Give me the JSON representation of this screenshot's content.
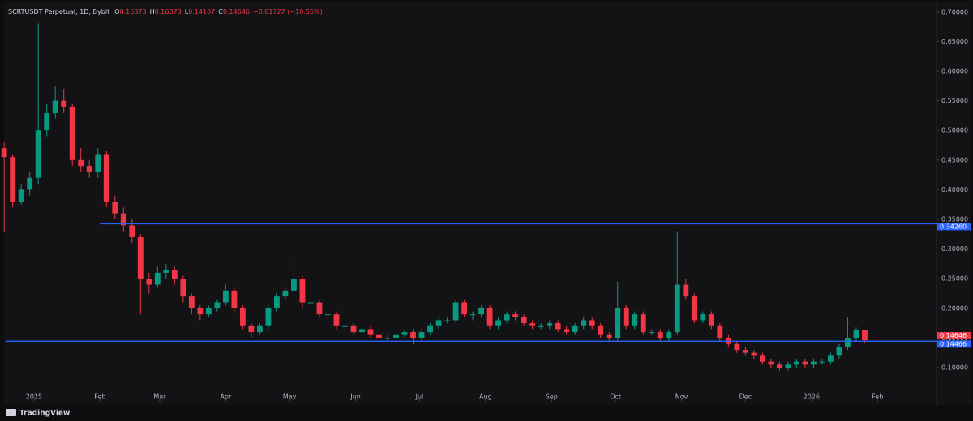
{
  "header": {
    "symbol": "SCRTUSDT Perpetual, 1D, Bybit",
    "ohlc": [
      {
        "key": "O",
        "value": "0.16373"
      },
      {
        "key": "H",
        "value": "0.16373"
      },
      {
        "key": "L",
        "value": "0.14107"
      },
      {
        "key": "C",
        "value": "0.14646"
      }
    ],
    "change": "−0.01727 (−10.55%)"
  },
  "footer": {
    "brand": "TradingView"
  },
  "chart_data": {
    "type": "candlestick",
    "up_color": "#089981",
    "down_color": "#f23645",
    "x": [
      -14,
      -10,
      -6,
      -2,
      2,
      6,
      10,
      14,
      18,
      22,
      26,
      30,
      34,
      38,
      42,
      46,
      50,
      54,
      58,
      62,
      66,
      70,
      74,
      78,
      82,
      86,
      90,
      94,
      98,
      102,
      106,
      110,
      114,
      118,
      122,
      126,
      130,
      134,
      138,
      142,
      146,
      150,
      154,
      158,
      162,
      166,
      170,
      174,
      178,
      182,
      186,
      190,
      194,
      198,
      202,
      206,
      210,
      214,
      218,
      222,
      226,
      230,
      234,
      238,
      242,
      246,
      250,
      254,
      258,
      262,
      266,
      270,
      274,
      278,
      282,
      286,
      290,
      294,
      298,
      302,
      306,
      310,
      314,
      318,
      322,
      326,
      330,
      334,
      338,
      342,
      346,
      350,
      354,
      358,
      362,
      366,
      370,
      374,
      378,
      382,
      386,
      390
    ],
    "open": [
      0.47,
      0.455,
      0.38,
      0.4,
      0.42,
      0.5,
      0.53,
      0.55,
      0.54,
      0.45,
      0.44,
      0.43,
      0.46,
      0.38,
      0.36,
      0.34,
      0.32,
      0.25,
      0.24,
      0.26,
      0.265,
      0.25,
      0.22,
      0.2,
      0.19,
      0.2,
      0.21,
      0.23,
      0.2,
      0.17,
      0.16,
      0.17,
      0.2,
      0.22,
      0.23,
      0.25,
      0.21,
      0.21,
      0.19,
      0.19,
      0.17,
      0.17,
      0.16,
      0.165,
      0.155,
      0.15,
      0.15,
      0.155,
      0.16,
      0.15,
      0.16,
      0.17,
      0.18,
      0.18,
      0.21,
      0.19,
      0.19,
      0.2,
      0.17,
      0.18,
      0.19,
      0.185,
      0.175,
      0.17,
      0.17,
      0.175,
      0.165,
      0.16,
      0.17,
      0.18,
      0.17,
      0.155,
      0.15,
      0.2,
      0.17,
      0.19,
      0.16,
      0.16,
      0.15,
      0.16,
      0.24,
      0.22,
      0.18,
      0.19,
      0.17,
      0.15,
      0.14,
      0.13,
      0.125,
      0.12,
      0.11,
      0.105,
      0.1,
      0.105,
      0.11,
      0.105,
      0.11,
      0.11,
      0.12,
      0.135,
      0.15,
      0.16373
    ],
    "high": [
      0.48,
      0.46,
      0.41,
      0.43,
      0.68,
      0.545,
      0.575,
      0.57,
      0.545,
      0.47,
      0.45,
      0.47,
      0.465,
      0.39,
      0.37,
      0.35,
      0.325,
      0.26,
      0.27,
      0.275,
      0.27,
      0.255,
      0.225,
      0.205,
      0.205,
      0.215,
      0.24,
      0.235,
      0.205,
      0.175,
      0.175,
      0.205,
      0.225,
      0.235,
      0.295,
      0.255,
      0.22,
      0.215,
      0.195,
      0.195,
      0.175,
      0.175,
      0.17,
      0.17,
      0.16,
      0.155,
      0.16,
      0.165,
      0.165,
      0.165,
      0.175,
      0.185,
      0.185,
      0.215,
      0.215,
      0.195,
      0.205,
      0.205,
      0.185,
      0.195,
      0.195,
      0.19,
      0.18,
      0.175,
      0.18,
      0.18,
      0.17,
      0.175,
      0.185,
      0.185,
      0.175,
      0.16,
      0.245,
      0.205,
      0.195,
      0.195,
      0.165,
      0.165,
      0.165,
      0.33,
      0.25,
      0.225,
      0.195,
      0.195,
      0.175,
      0.155,
      0.145,
      0.135,
      0.13,
      0.125,
      0.115,
      0.11,
      0.11,
      0.115,
      0.115,
      0.115,
      0.115,
      0.125,
      0.14,
      0.185,
      0.168,
      0.16373
    ],
    "low": [
      0.33,
      0.37,
      0.375,
      0.39,
      0.41,
      0.49,
      0.52,
      0.53,
      0.44,
      0.43,
      0.42,
      0.42,
      0.37,
      0.35,
      0.33,
      0.31,
      0.19,
      0.225,
      0.235,
      0.25,
      0.24,
      0.21,
      0.19,
      0.18,
      0.185,
      0.195,
      0.205,
      0.195,
      0.165,
      0.15,
      0.155,
      0.165,
      0.195,
      0.215,
      0.225,
      0.2,
      0.2,
      0.185,
      0.18,
      0.165,
      0.16,
      0.155,
      0.155,
      0.15,
      0.145,
      0.145,
      0.145,
      0.15,
      0.14,
      0.145,
      0.155,
      0.165,
      0.175,
      0.175,
      0.185,
      0.18,
      0.185,
      0.165,
      0.165,
      0.175,
      0.18,
      0.17,
      0.165,
      0.165,
      0.165,
      0.16,
      0.155,
      0.155,
      0.165,
      0.165,
      0.15,
      0.145,
      0.145,
      0.165,
      0.165,
      0.155,
      0.155,
      0.145,
      0.145,
      0.155,
      0.215,
      0.175,
      0.175,
      0.165,
      0.145,
      0.135,
      0.125,
      0.12,
      0.115,
      0.105,
      0.1,
      0.095,
      0.095,
      0.1,
      0.1,
      0.1,
      0.105,
      0.105,
      0.115,
      0.13,
      0.145,
      0.14107
    ],
    "close": [
      0.455,
      0.38,
      0.4,
      0.42,
      0.5,
      0.53,
      0.55,
      0.54,
      0.45,
      0.44,
      0.43,
      0.46,
      0.38,
      0.36,
      0.34,
      0.32,
      0.25,
      0.24,
      0.26,
      0.265,
      0.25,
      0.22,
      0.2,
      0.19,
      0.2,
      0.21,
      0.23,
      0.2,
      0.17,
      0.16,
      0.17,
      0.2,
      0.22,
      0.23,
      0.25,
      0.21,
      0.21,
      0.19,
      0.19,
      0.17,
      0.17,
      0.16,
      0.165,
      0.155,
      0.15,
      0.15,
      0.155,
      0.16,
      0.15,
      0.16,
      0.17,
      0.18,
      0.18,
      0.21,
      0.19,
      0.19,
      0.2,
      0.17,
      0.18,
      0.19,
      0.185,
      0.175,
      0.17,
      0.17,
      0.175,
      0.165,
      0.16,
      0.17,
      0.18,
      0.17,
      0.155,
      0.15,
      0.2,
      0.17,
      0.19,
      0.16,
      0.16,
      0.15,
      0.16,
      0.24,
      0.22,
      0.18,
      0.19,
      0.17,
      0.15,
      0.14,
      0.13,
      0.125,
      0.12,
      0.11,
      0.105,
      0.1,
      0.105,
      0.11,
      0.105,
      0.11,
      0.11,
      0.12,
      0.135,
      0.15,
      0.16373,
      0.14646
    ],
    "last_label": "0.14646",
    "levels": [
      {
        "value": 0.3426,
        "label": "0.34260",
        "color": "#2962ff",
        "x_start": 31
      },
      {
        "value": 0.14466,
        "label": "0.14466",
        "color": "#2962ff"
      }
    ],
    "xlim": [
      -13.3,
      423.7
    ],
    "xticks": [
      {
        "value": 0,
        "label": "2025"
      },
      {
        "value": 31,
        "label": "Feb"
      },
      {
        "value": 59,
        "label": "Mar"
      },
      {
        "value": 90,
        "label": "Apr"
      },
      {
        "value": 120,
        "label": "May"
      },
      {
        "value": 151,
        "label": "Jun"
      },
      {
        "value": 181,
        "label": "Jul"
      },
      {
        "value": 212,
        "label": "Aug"
      },
      {
        "value": 243,
        "label": "Sep"
      },
      {
        "value": 273,
        "label": "Oct"
      },
      {
        "value": 304,
        "label": "Nov"
      },
      {
        "value": 334,
        "label": "Dec"
      },
      {
        "value": 365,
        "label": "2026"
      },
      {
        "value": 396,
        "label": "Feb"
      }
    ],
    "ylim": [
      0.044,
      0.712
    ],
    "yticks": [
      {
        "value": 0.1,
        "label": "0.10000"
      },
      {
        "value": 0.15,
        "label": "0.15000"
      },
      {
        "value": 0.2,
        "label": "0.20000"
      },
      {
        "value": 0.25,
        "label": "0.25000"
      },
      {
        "value": 0.3,
        "label": "0.30000"
      },
      {
        "value": 0.35,
        "label": "0.35000"
      },
      {
        "value": 0.4,
        "label": "0.40000"
      },
      {
        "value": 0.45,
        "label": "0.45000"
      },
      {
        "value": 0.5,
        "label": "0.50000"
      },
      {
        "value": 0.55,
        "label": "0.55000"
      },
      {
        "value": 0.6,
        "label": "0.60000"
      },
      {
        "value": 0.65,
        "label": "0.65000"
      },
      {
        "value": 0.7,
        "label": "0.70000"
      }
    ]
  }
}
